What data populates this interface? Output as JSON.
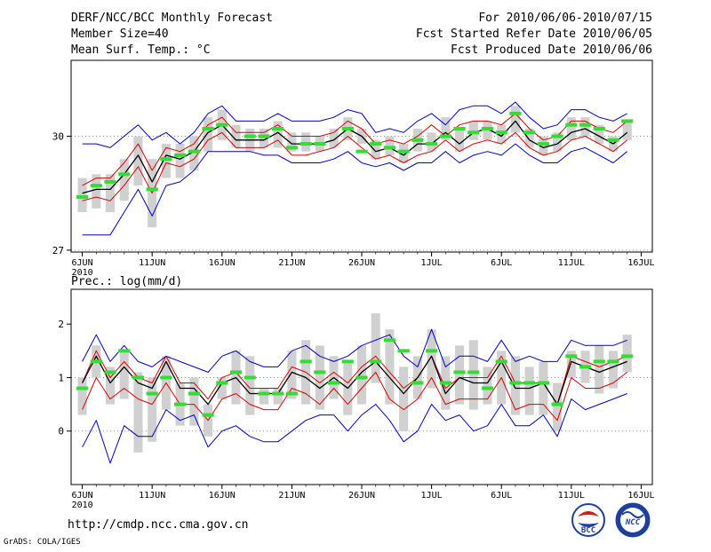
{
  "header": {
    "title": "DERF/NCC/BCC Monthly Forecast",
    "member_size": "Member Size=40",
    "variable": "Mean Surf. Temp.: °C",
    "forecast_period": "For 2010/06/06-2010/07/15",
    "started_date": "Fcst Started Refer Date 2010/06/05",
    "produced_date": "Fcst Produced Date 2010/06/06"
  },
  "footer": {
    "url": "http://cmdp.ncc.cma.gov.cn",
    "credit": "GrADS: COLA/IGES",
    "logo_left_text": "BCC",
    "logo_right_text": "NCC"
  },
  "colors": {
    "spread": "#0000cc",
    "stddev": "#dd0000",
    "mean": "#000000",
    "box": "#d0d0d0",
    "observed": "#33dd33",
    "grid": "#777777"
  },
  "chart_data": [
    {
      "type": "line",
      "title": "Mean Surf. Temp.: °C",
      "x_tick_labels": [
        "6JUN",
        "11JUN",
        "16JUN",
        "21JUN",
        "26JUN",
        "1JUL",
        "6JUL",
        "11JUL",
        "16JUL"
      ],
      "x_year_label": "2010",
      "x_tick_days": [
        0,
        5,
        10,
        15,
        20,
        25,
        30,
        35,
        40
      ],
      "xlim": [
        -0.8,
        40.8
      ],
      "ylim": [
        26.95,
        32.0
      ],
      "y_ticks": [
        27,
        30
      ],
      "y_tick_labels": [
        "27",
        "30"
      ],
      "days": [
        0,
        1,
        2,
        3,
        4,
        5,
        6,
        7,
        8,
        9,
        10,
        11,
        12,
        13,
        14,
        15,
        16,
        17,
        18,
        19,
        20,
        21,
        22,
        23,
        24,
        25,
        26,
        27,
        28,
        29,
        30,
        31,
        32,
        33,
        34,
        35,
        36,
        37,
        38,
        39
      ],
      "series": [
        {
          "name": "Ensemble max",
          "values": [
            29.8,
            29.8,
            29.7,
            30.0,
            30.3,
            29.9,
            30.1,
            29.8,
            30.1,
            30.6,
            30.8,
            30.4,
            30.4,
            30.4,
            30.6,
            30.4,
            30.4,
            30.4,
            30.5,
            30.7,
            30.6,
            30.1,
            30.2,
            30.1,
            30.4,
            30.6,
            30.3,
            30.7,
            30.8,
            30.8,
            30.6,
            30.9,
            30.5,
            30.2,
            30.3,
            30.7,
            30.7,
            30.5,
            30.4,
            30.6
          ]
        },
        {
          "name": "Mean + 1 std",
          "values": [
            28.7,
            28.9,
            28.9,
            29.3,
            29.8,
            29.1,
            29.7,
            29.6,
            29.8,
            30.3,
            30.5,
            30.1,
            30.1,
            30.1,
            30.3,
            30.0,
            30.0,
            30.0,
            30.1,
            30.4,
            30.2,
            29.8,
            29.9,
            29.8,
            30.0,
            30.3,
            30.0,
            30.3,
            30.4,
            30.4,
            30.3,
            30.6,
            30.2,
            29.9,
            30.0,
            30.4,
            30.4,
            30.2,
            30.1,
            30.4
          ]
        },
        {
          "name": "Ensemble mean",
          "values": [
            28.5,
            28.6,
            28.6,
            29.0,
            29.5,
            28.8,
            29.5,
            29.4,
            29.6,
            30.1,
            30.3,
            29.9,
            29.9,
            29.9,
            30.1,
            29.8,
            29.8,
            29.8,
            29.9,
            30.2,
            30.0,
            29.6,
            29.7,
            29.5,
            29.8,
            29.8,
            30.1,
            29.8,
            30.1,
            30.2,
            30.0,
            30.4,
            29.9,
            29.7,
            29.8,
            30.1,
            30.2,
            30.0,
            29.8,
            30.1
          ]
        },
        {
          "name": "Mean - 1 std",
          "values": [
            28.3,
            28.4,
            28.3,
            28.7,
            29.2,
            28.5,
            29.3,
            29.2,
            29.4,
            29.9,
            30.1,
            29.7,
            29.7,
            29.7,
            29.9,
            29.5,
            29.5,
            29.6,
            29.7,
            30.0,
            29.7,
            29.4,
            29.5,
            29.3,
            29.5,
            29.6,
            29.9,
            29.6,
            29.8,
            29.9,
            29.8,
            30.1,
            29.7,
            29.5,
            29.6,
            29.9,
            30.0,
            29.8,
            29.6,
            29.9
          ]
        },
        {
          "name": "Ensemble min",
          "values": [
            27.4,
            27.4,
            27.4,
            28.0,
            28.6,
            27.9,
            28.7,
            28.8,
            29.1,
            29.6,
            29.6,
            29.6,
            29.6,
            29.5,
            29.5,
            29.3,
            29.3,
            29.3,
            29.4,
            29.6,
            29.3,
            29.2,
            29.3,
            29.1,
            29.3,
            29.3,
            29.6,
            29.3,
            29.5,
            29.6,
            29.5,
            29.8,
            29.5,
            29.3,
            29.3,
            29.6,
            29.7,
            29.5,
            29.3,
            29.6
          ]
        }
      ],
      "box_ranges": [
        [
          28.0,
          28.9
        ],
        [
          28.1,
          29.0
        ],
        [
          28.0,
          29.0
        ],
        [
          28.3,
          29.4
        ],
        [
          28.7,
          30.0
        ],
        [
          27.6,
          29.4
        ],
        [
          28.9,
          29.8
        ],
        [
          28.9,
          29.8
        ],
        [
          29.1,
          30.0
        ],
        [
          29.6,
          30.5
        ],
        [
          29.9,
          30.7
        ],
        [
          29.7,
          30.3
        ],
        [
          29.6,
          30.2
        ],
        [
          29.7,
          30.2
        ],
        [
          29.7,
          30.4
        ],
        [
          29.6,
          30.1
        ],
        [
          29.6,
          30.1
        ],
        [
          29.6,
          30.0
        ],
        [
          29.7,
          30.2
        ],
        [
          29.9,
          30.5
        ],
        [
          29.8,
          30.2
        ],
        [
          29.4,
          29.9
        ],
        [
          29.5,
          30.0
        ],
        [
          29.3,
          29.8
        ],
        [
          29.6,
          30.2
        ],
        [
          29.6,
          30.1
        ],
        [
          29.9,
          30.5
        ],
        [
          29.6,
          30.2
        ],
        [
          29.9,
          30.4
        ],
        [
          29.9,
          30.4
        ],
        [
          29.8,
          30.3
        ],
        [
          30.1,
          30.8
        ],
        [
          29.7,
          30.2
        ],
        [
          29.5,
          30.0
        ],
        [
          29.6,
          30.1
        ],
        [
          29.9,
          30.5
        ],
        [
          30.0,
          30.5
        ],
        [
          29.8,
          30.3
        ],
        [
          29.6,
          30.0
        ],
        [
          29.9,
          30.4
        ]
      ],
      "observed": [
        28.4,
        28.7,
        28.8,
        29.0,
        null,
        28.6,
        29.4,
        29.5,
        29.6,
        30.2,
        30.3,
        null,
        30.0,
        30.0,
        30.2,
        29.7,
        29.8,
        29.8,
        null,
        30.2,
        29.6,
        29.8,
        29.7,
        29.6,
        29.9,
        29.8,
        30.0,
        30.2,
        30.1,
        30.2,
        30.1,
        30.6,
        30.1,
        29.8,
        30.0,
        30.3,
        30.3,
        30.2,
        29.9,
        30.4
      ]
    },
    {
      "type": "line",
      "title": "Prec.: log(mm/d)",
      "x_tick_labels": [
        "6JUN",
        "11JUN",
        "16JUN",
        "21JUN",
        "26JUN",
        "1JUL",
        "6JUL",
        "11JUL",
        "16JUL"
      ],
      "x_year_label": "2010",
      "x_tick_days": [
        0,
        5,
        10,
        15,
        20,
        25,
        30,
        35,
        40
      ],
      "xlim": [
        -0.8,
        40.8
      ],
      "ylim": [
        -1.0,
        2.65
      ],
      "y_ticks": [
        0,
        1,
        2
      ],
      "y_tick_labels": [
        "0",
        "1",
        "2"
      ],
      "days": [
        0,
        1,
        2,
        3,
        4,
        5,
        6,
        7,
        8,
        9,
        10,
        11,
        12,
        13,
        14,
        15,
        16,
        17,
        18,
        19,
        20,
        21,
        22,
        23,
        24,
        25,
        26,
        27,
        28,
        29,
        30,
        31,
        32,
        33,
        34,
        35,
        36,
        37,
        38,
        39
      ],
      "series": [
        {
          "name": "Ensemble max",
          "values": [
            1.3,
            1.8,
            1.3,
            1.6,
            1.3,
            1.2,
            1.4,
            1.3,
            1.2,
            1.1,
            1.4,
            1.5,
            1.3,
            1.2,
            1.2,
            1.5,
            1.6,
            1.4,
            1.3,
            1.4,
            1.6,
            1.7,
            1.8,
            1.4,
            1.2,
            1.9,
            1.2,
            1.4,
            1.4,
            1.3,
            1.7,
            1.3,
            1.4,
            1.3,
            1.3,
            1.7,
            1.6,
            1.6,
            1.6,
            1.7
          ]
        },
        {
          "name": "Mean + 1 std",
          "values": [
            0.9,
            1.5,
            1.0,
            1.3,
            1.0,
            0.9,
            1.4,
            0.9,
            0.9,
            0.6,
            1.0,
            1.1,
            0.8,
            0.8,
            0.8,
            1.2,
            1.1,
            0.9,
            1.1,
            0.9,
            1.2,
            1.4,
            1.1,
            0.8,
            1.0,
            1.4,
            0.8,
            1.0,
            1.0,
            1.0,
            1.4,
            0.9,
            0.9,
            0.9,
            0.5,
            1.4,
            1.3,
            1.2,
            1.3,
            1.4
          ]
        },
        {
          "name": "Ensemble mean",
          "values": [
            0.9,
            1.4,
            0.9,
            1.2,
            0.9,
            0.8,
            1.3,
            0.8,
            0.8,
            0.5,
            0.9,
            1.0,
            0.7,
            0.7,
            0.7,
            1.1,
            1.0,
            0.8,
            1.0,
            0.8,
            1.1,
            1.3,
            1.0,
            0.7,
            1.0,
            1.4,
            0.7,
            1.0,
            0.9,
            0.9,
            1.3,
            0.8,
            0.8,
            0.9,
            0.5,
            1.3,
            1.2,
            1.1,
            1.2,
            1.3
          ]
        },
        {
          "name": "Mean - 1 std",
          "values": [
            0.4,
            1.0,
            0.6,
            0.8,
            0.6,
            0.5,
            0.9,
            0.5,
            0.5,
            0.2,
            0.6,
            0.7,
            0.5,
            0.4,
            0.4,
            0.8,
            0.7,
            0.5,
            0.8,
            0.5,
            0.8,
            1.1,
            0.6,
            0.4,
            0.6,
            1.0,
            0.5,
            0.6,
            0.6,
            0.6,
            1.0,
            0.4,
            0.5,
            0.5,
            0.2,
            1.0,
            0.8,
            0.8,
            0.9,
            1.1
          ]
        },
        {
          "name": "Ensemble min",
          "values": [
            -0.3,
            0.2,
            -0.6,
            0.1,
            -0.1,
            -0.1,
            0.4,
            0.2,
            0.3,
            -0.3,
            0.0,
            0.1,
            -0.1,
            -0.2,
            -0.2,
            0.0,
            0.2,
            0.3,
            0.3,
            0.0,
            0.3,
            0.5,
            0.2,
            -0.2,
            0.0,
            0.5,
            0.2,
            0.3,
            0.0,
            0.1,
            0.5,
            0.1,
            0.1,
            0.3,
            -0.1,
            0.6,
            0.4,
            0.5,
            0.6,
            0.7
          ]
        }
      ],
      "box_ranges": [
        [
          0.3,
          1.0
        ],
        [
          1.0,
          1.6
        ],
        [
          0.5,
          1.2
        ],
        [
          0.6,
          1.5
        ],
        [
          -0.4,
          1.1
        ],
        [
          -0.2,
          1.0
        ],
        [
          0.4,
          1.4
        ],
        [
          0.1,
          0.9
        ],
        [
          0.1,
          1.0
        ],
        [
          -0.1,
          0.5
        ],
        [
          0.6,
          1.0
        ],
        [
          0.5,
          1.5
        ],
        [
          0.3,
          1.4
        ],
        [
          0.5,
          0.8
        ],
        [
          0.5,
          0.8
        ],
        [
          0.6,
          1.5
        ],
        [
          0.5,
          1.7
        ],
        [
          0.4,
          1.6
        ],
        [
          0.6,
          1.4
        ],
        [
          0.3,
          1.3
        ],
        [
          0.5,
          1.6
        ],
        [
          0.9,
          2.2
        ],
        [
          0.5,
          1.9
        ],
        [
          0.0,
          1.2
        ],
        [
          0.6,
          1.4
        ],
        [
          0.8,
          1.9
        ],
        [
          0.4,
          1.4
        ],
        [
          0.5,
          1.6
        ],
        [
          0.4,
          1.7
        ],
        [
          0.5,
          1.2
        ],
        [
          0.5,
          1.5
        ],
        [
          0.3,
          1.4
        ],
        [
          0.3,
          1.2
        ],
        [
          0.3,
          1.3
        ],
        [
          0.0,
          0.9
        ],
        [
          1.0,
          1.5
        ],
        [
          0.9,
          1.5
        ],
        [
          0.7,
          1.6
        ],
        [
          0.8,
          1.5
        ],
        [
          1.1,
          1.8
        ]
      ],
      "observed": [
        0.8,
        1.3,
        1.1,
        1.5,
        1.0,
        0.7,
        1.0,
        0.5,
        0.7,
        0.3,
        0.9,
        1.1,
        1.0,
        0.7,
        0.7,
        0.7,
        1.3,
        1.1,
        0.9,
        1.3,
        1.0,
        1.3,
        1.7,
        1.5,
        0.9,
        1.5,
        0.9,
        1.1,
        1.1,
        0.8,
        1.3,
        0.9,
        0.9,
        0.9,
        0.5,
        1.4,
        1.2,
        1.3,
        1.3,
        1.4
      ]
    }
  ]
}
